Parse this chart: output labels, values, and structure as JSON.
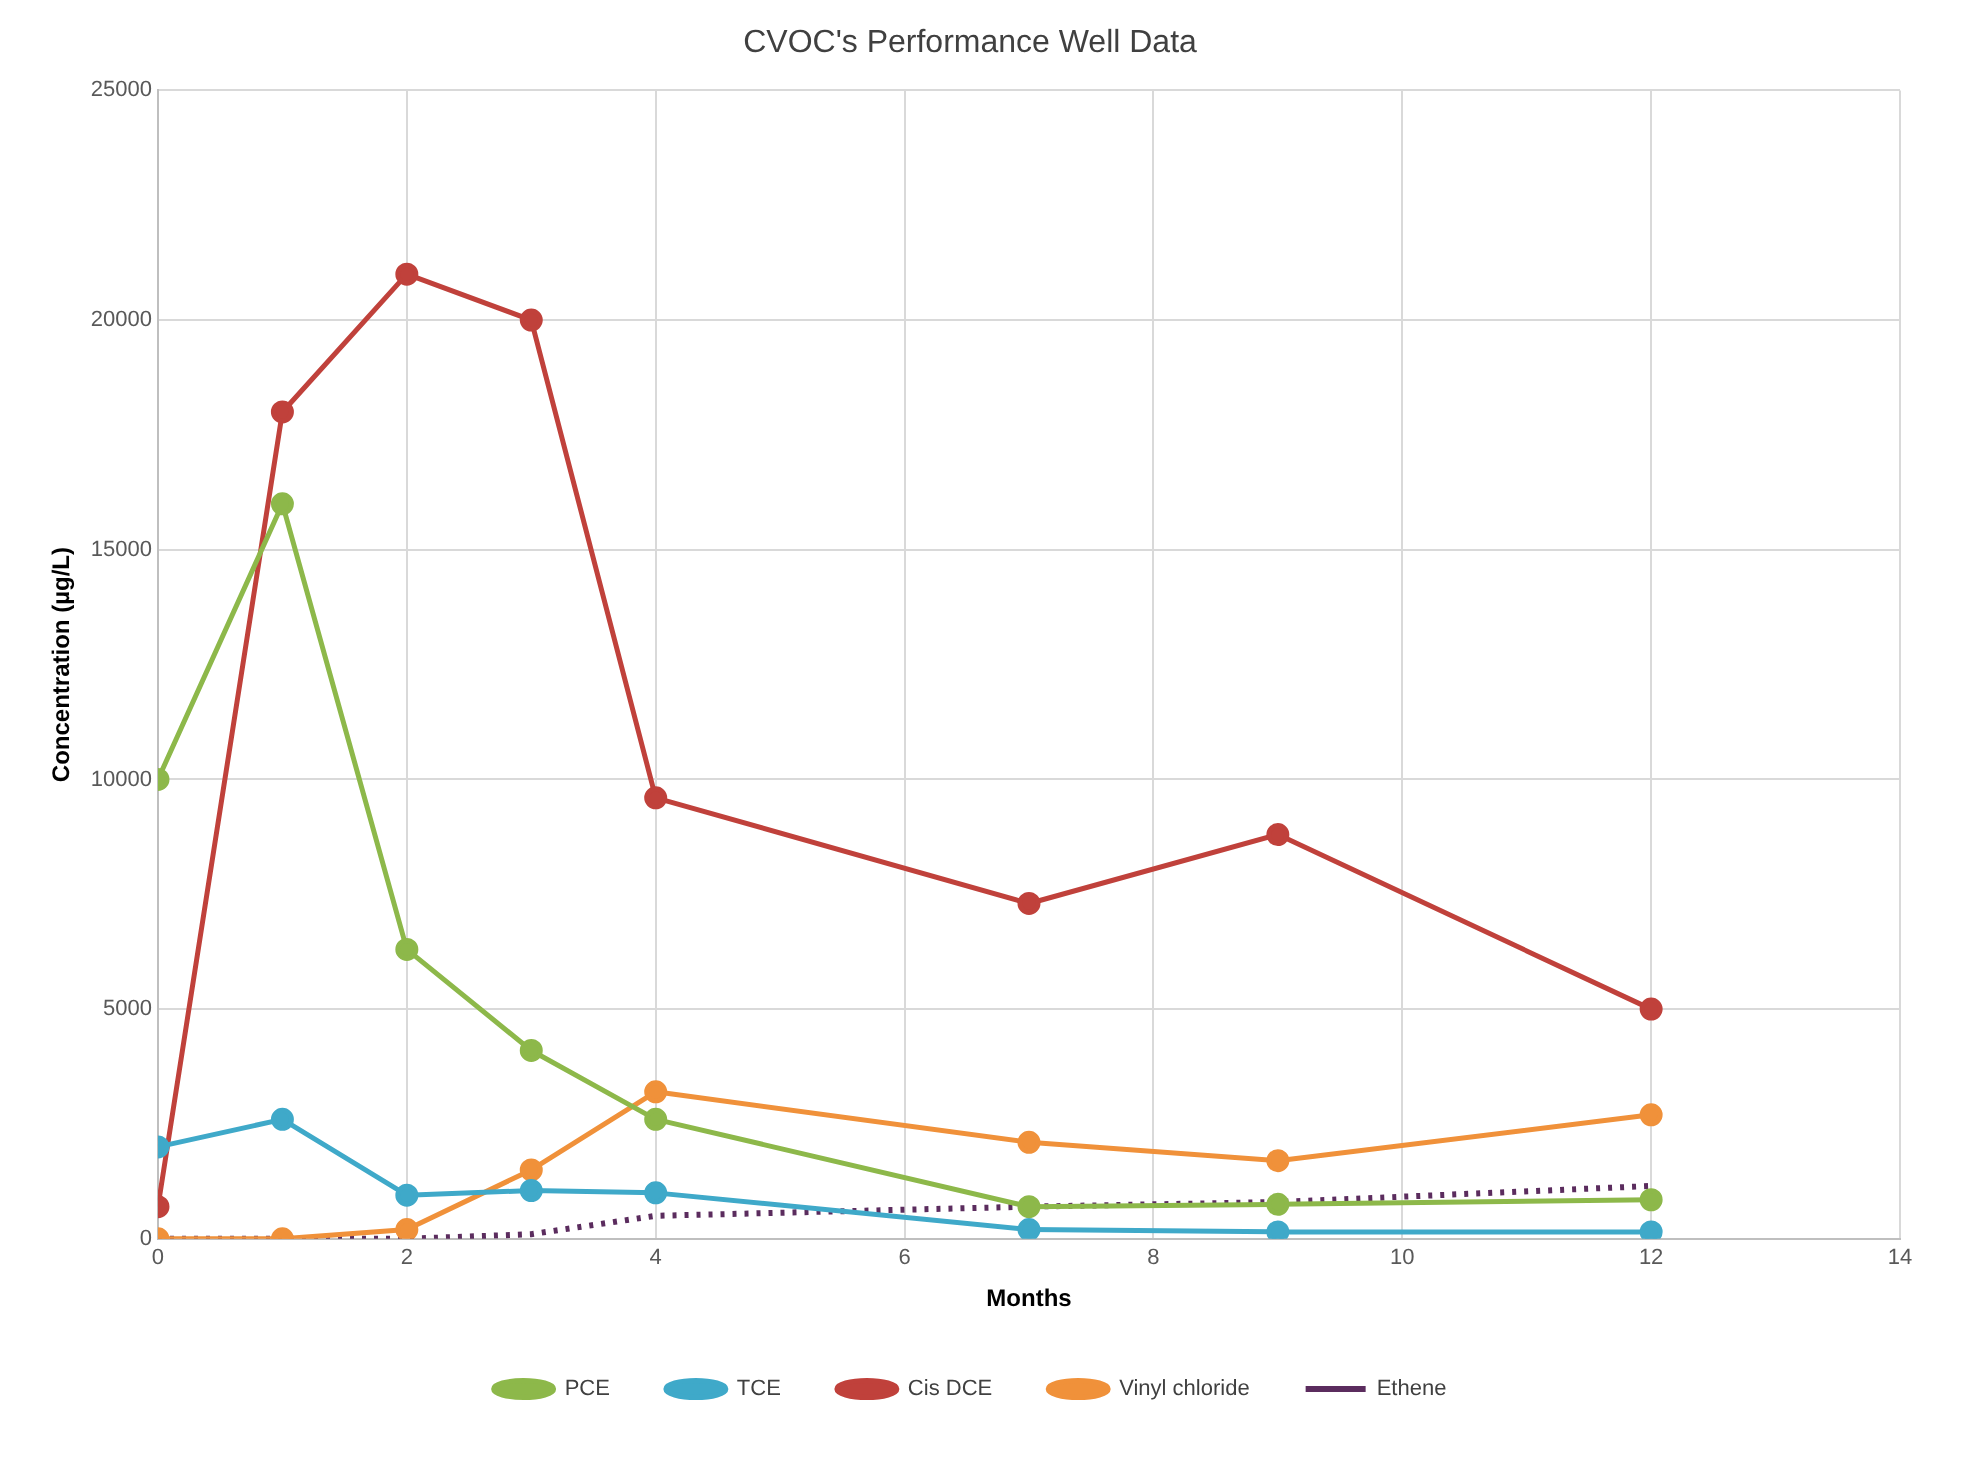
{
  "chart_data": {
    "type": "line",
    "title": "CVOC's Performance Well Data",
    "xlabel": "Months",
    "ylabel": "Concentration (µg/L)",
    "x": [
      0,
      1,
      2,
      3,
      4,
      7,
      9,
      12
    ],
    "series": [
      {
        "name": "PCE",
        "color": "#8db84a",
        "values": [
          10000,
          16000,
          6300,
          4100,
          2600,
          700,
          750,
          850
        ]
      },
      {
        "name": "TCE",
        "color": "#3fa9c9",
        "values": [
          2000,
          2600,
          950,
          1050,
          1000,
          200,
          150,
          150
        ]
      },
      {
        "name": "Cis DCE",
        "color": "#c0413b",
        "values": [
          700,
          18000,
          21000,
          20000,
          9600,
          7300,
          8800,
          5000
        ]
      },
      {
        "name": "Vinyl chloride",
        "color": "#f0913a",
        "values": [
          0,
          0,
          200,
          1500,
          3200,
          2100,
          1700,
          2700
        ]
      },
      {
        "name": "Ethene",
        "color": "#5b2c5e",
        "values": [
          0,
          0,
          0,
          100,
          500,
          700,
          800,
          1150
        ],
        "marker": "none",
        "line_style": "dotted"
      }
    ],
    "xlim": [
      0,
      14
    ],
    "xticks": [
      0,
      2,
      4,
      6,
      8,
      10,
      12,
      14
    ],
    "ylim": [
      0,
      25000
    ],
    "yticks": [
      0,
      5000,
      10000,
      15000,
      20000,
      25000
    ],
    "grid": true,
    "legend": "bottom",
    "marker": "circle",
    "line_style": "solid"
  }
}
